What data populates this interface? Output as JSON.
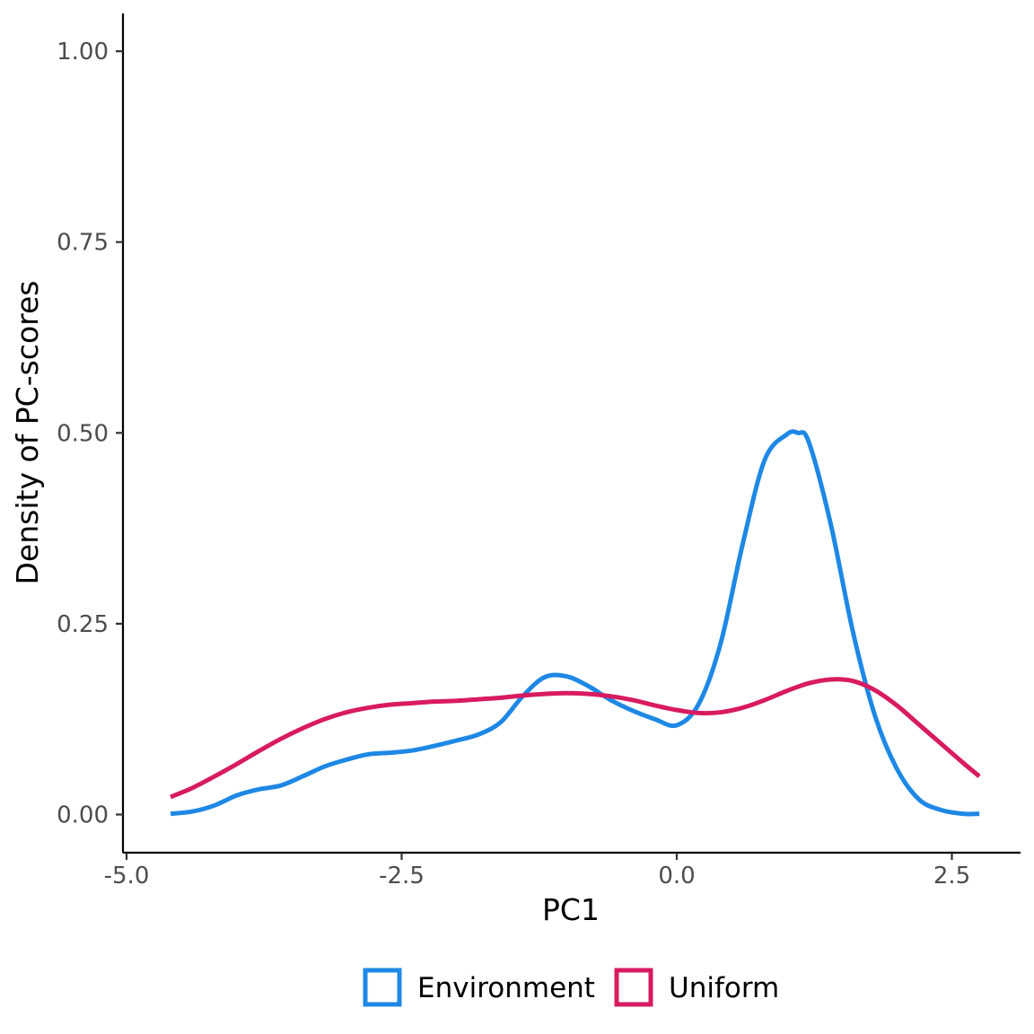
{
  "chart_data": {
    "type": "line",
    "title": "",
    "xlabel": "PC1",
    "ylabel": "Density of PC-scores",
    "xlim": [
      -5.0,
      3.0
    ],
    "ylim": [
      -0.05,
      1.05
    ],
    "x_ticks": [
      -5.0,
      -2.5,
      0.0,
      2.5
    ],
    "x_tick_labels": [
      "-5.0",
      "-2.5",
      "0.0",
      "2.5"
    ],
    "y_ticks": [
      0.0,
      0.25,
      0.5,
      0.75,
      1.0
    ],
    "y_tick_labels": [
      "0.00",
      "0.25",
      "0.50",
      "0.75",
      "1.00"
    ],
    "grid": false,
    "legend_position": "bottom",
    "series": [
      {
        "name": "Environment",
        "color": "#1E88E5",
        "x": [
          -4.6,
          -4.4,
          -4.2,
          -4.0,
          -3.8,
          -3.6,
          -3.4,
          -3.2,
          -3.0,
          -2.8,
          -2.6,
          -2.4,
          -2.2,
          -2.0,
          -1.8,
          -1.6,
          -1.4,
          -1.2,
          -1.0,
          -0.8,
          -0.6,
          -0.4,
          -0.2,
          0.0,
          0.2,
          0.4,
          0.6,
          0.8,
          1.0,
          1.1,
          1.2,
          1.4,
          1.6,
          1.8,
          2.0,
          2.2,
          2.4,
          2.6,
          2.75
        ],
        "y": [
          0.001,
          0.004,
          0.012,
          0.025,
          0.033,
          0.038,
          0.05,
          0.063,
          0.072,
          0.079,
          0.081,
          0.084,
          0.09,
          0.097,
          0.105,
          0.121,
          0.155,
          0.18,
          0.181,
          0.168,
          0.15,
          0.136,
          0.125,
          0.117,
          0.145,
          0.225,
          0.355,
          0.465,
          0.498,
          0.5,
          0.488,
          0.38,
          0.24,
          0.13,
          0.06,
          0.02,
          0.006,
          0.001,
          0.001
        ]
      },
      {
        "name": "Uniform",
        "color": "#D81B60",
        "x": [
          -4.6,
          -4.4,
          -4.2,
          -4.0,
          -3.8,
          -3.6,
          -3.4,
          -3.2,
          -3.0,
          -2.8,
          -2.6,
          -2.4,
          -2.2,
          -2.0,
          -1.8,
          -1.6,
          -1.4,
          -1.2,
          -1.0,
          -0.8,
          -0.6,
          -0.4,
          -0.2,
          0.0,
          0.2,
          0.4,
          0.6,
          0.8,
          1.0,
          1.2,
          1.4,
          1.6,
          1.8,
          2.0,
          2.2,
          2.4,
          2.6,
          2.75
        ],
        "y": [
          0.023,
          0.035,
          0.05,
          0.066,
          0.083,
          0.099,
          0.113,
          0.125,
          0.134,
          0.14,
          0.144,
          0.146,
          0.148,
          0.149,
          0.151,
          0.153,
          0.156,
          0.158,
          0.159,
          0.158,
          0.155,
          0.15,
          0.143,
          0.137,
          0.133,
          0.134,
          0.14,
          0.15,
          0.162,
          0.172,
          0.177,
          0.175,
          0.163,
          0.143,
          0.118,
          0.093,
          0.068,
          0.05
        ]
      }
    ]
  }
}
